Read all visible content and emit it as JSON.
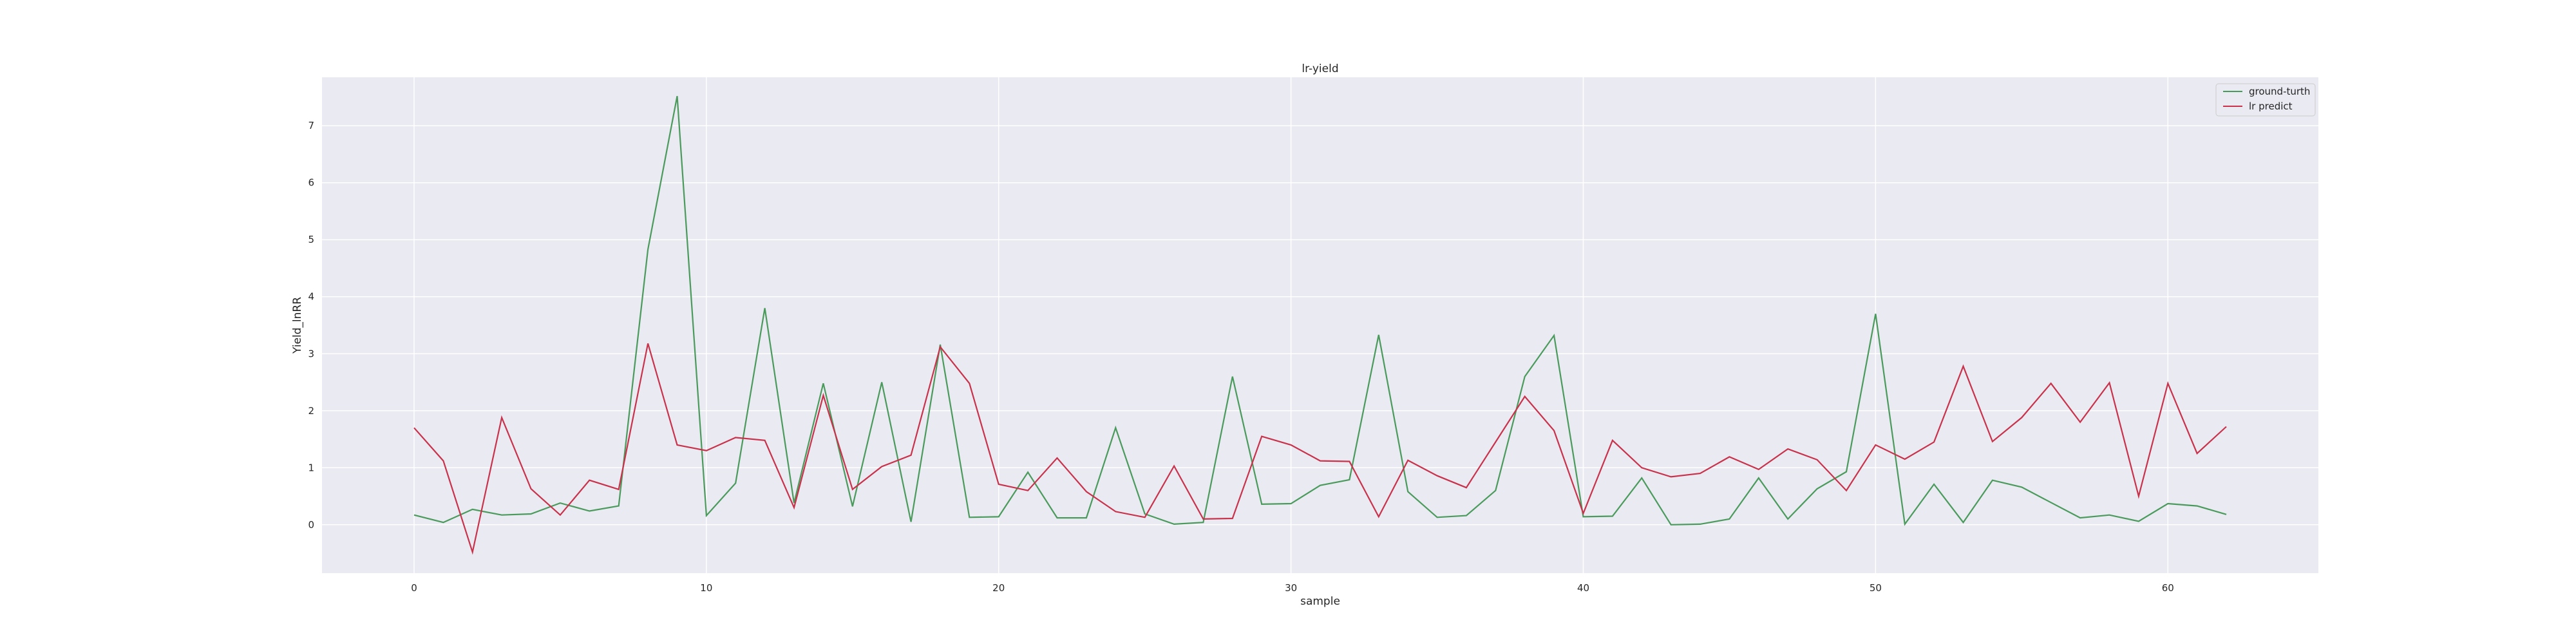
{
  "chart_data": {
    "type": "line",
    "title": "lr-yield",
    "xlabel": "sample",
    "ylabel": "Yield_lnRR",
    "xlim": [
      -3.15,
      65.15
    ],
    "ylim": [
      -0.85,
      7.85
    ],
    "xticks": [
      0,
      10,
      20,
      30,
      40,
      50,
      60
    ],
    "yticks": [
      0,
      1,
      2,
      3,
      4,
      5,
      6,
      7
    ],
    "grid": true,
    "legend_position": "top-right",
    "x": [
      0,
      1,
      2,
      3,
      4,
      5,
      6,
      7,
      8,
      9,
      10,
      11,
      12,
      13,
      14,
      15,
      16,
      17,
      18,
      19,
      20,
      21,
      22,
      23,
      24,
      25,
      26,
      27,
      28,
      29,
      30,
      31,
      32,
      33,
      34,
      35,
      36,
      37,
      38,
      39,
      40,
      41,
      42,
      43,
      44,
      45,
      46,
      47,
      48,
      49,
      50,
      51,
      52,
      53,
      54,
      55,
      56,
      57,
      58,
      59,
      60,
      61,
      62
    ],
    "series": [
      {
        "name": "ground-turth",
        "color": "#4a9a5c",
        "values": [
          0.17,
          0.04,
          0.27,
          0.17,
          0.19,
          0.38,
          0.24,
          0.33,
          4.83,
          7.52,
          0.16,
          0.73,
          3.8,
          0.38,
          2.48,
          0.32,
          2.5,
          0.05,
          3.16,
          0.13,
          0.14,
          0.92,
          0.12,
          0.12,
          1.7,
          0.19,
          0.01,
          0.04,
          2.6,
          0.36,
          0.37,
          0.69,
          0.79,
          3.33,
          0.58,
          0.13,
          0.16,
          0.6,
          2.6,
          3.32,
          0.14,
          0.15,
          0.82,
          0.0,
          0.01,
          0.1,
          0.82,
          0.1,
          0.63,
          0.93,
          3.7,
          0.01,
          0.71,
          0.04,
          0.78,
          0.66,
          0.39,
          0.12,
          0.17,
          0.06,
          0.37,
          0.33,
          0.18
        ]
      },
      {
        "name": "lr predict",
        "color": "#c8324b",
        "values": [
          1.7,
          1.12,
          -0.48,
          1.88,
          0.63,
          0.17,
          0.78,
          0.62,
          3.18,
          1.4,
          1.3,
          1.53,
          1.48,
          0.3,
          2.27,
          0.62,
          1.02,
          1.22,
          3.12,
          2.48,
          0.71,
          0.6,
          1.17,
          0.58,
          0.23,
          0.13,
          1.03,
          0.1,
          0.11,
          1.55,
          1.4,
          1.12,
          1.11,
          0.14,
          1.13,
          0.86,
          0.65,
          1.45,
          2.25,
          1.65,
          0.2,
          1.48,
          1.0,
          0.84,
          0.9,
          1.19,
          0.97,
          1.33,
          1.14,
          0.6,
          1.4,
          1.15,
          1.45,
          2.78,
          1.46,
          1.88,
          2.48,
          1.8,
          2.49,
          0.5,
          2.48,
          1.25,
          1.72
        ]
      }
    ]
  }
}
